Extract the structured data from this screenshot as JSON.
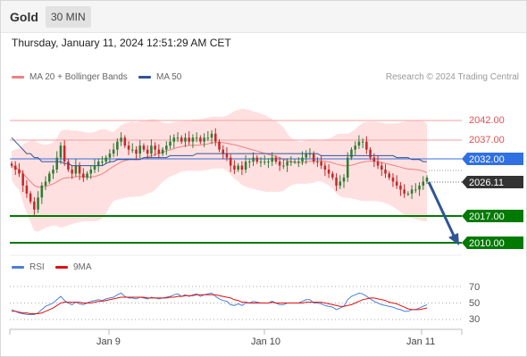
{
  "header": {
    "instrument": "Gold",
    "timeframe": "30 MIN"
  },
  "timestamp": "Thursday, January 11, 2024 12:51:29 AM CET",
  "legend": {
    "bollinger": {
      "label": "MA 20 + Bollinger Bands",
      "color": "#f08080"
    },
    "ma50": {
      "label": "MA 50",
      "color": "#2f5597"
    }
  },
  "credit": "Research © 2024 Trading Central",
  "levels": [
    {
      "value": "2042.00",
      "type": "resistance",
      "color": "#e05050"
    },
    {
      "value": "2037.00",
      "type": "resistance",
      "color": "#e05050"
    },
    {
      "value": "2032.00",
      "type": "pivot",
      "color": "#3070e0"
    },
    {
      "value": "2026.11",
      "type": "last",
      "color": "#333333"
    },
    {
      "value": "2017.00",
      "type": "support",
      "color": "#007a00"
    },
    {
      "value": "2010.00",
      "type": "support",
      "color": "#007a00"
    }
  ],
  "rsi": {
    "legend": [
      {
        "label": "RSI",
        "color": "#4a7fd8"
      },
      {
        "label": "9MA",
        "color": "#e01010"
      }
    ],
    "levels": [
      "70",
      "50",
      "30"
    ]
  },
  "x_axis": [
    "Jan 9",
    "Jan 10",
    "Jan 11"
  ],
  "colors": {
    "up": "#2e7d32",
    "down": "#c62828",
    "band": "#ffd8d8"
  },
  "chart_data": {
    "type": "candlestick",
    "price_range": [
      2007,
      2047
    ],
    "last_price": 2026.11,
    "forecast_target": 2010.0,
    "series": [
      {
        "name": "Price",
        "close": [
          2029,
          2028,
          2027,
          2024,
          2022,
          2020,
          2018,
          2021,
          2024,
          2025,
          2027,
          2028,
          2031,
          2034,
          2030,
          2028,
          2027,
          2029,
          2027,
          2026,
          2027,
          2028,
          2029,
          2030,
          2030,
          2031,
          2032,
          2033,
          2035,
          2036,
          2034,
          2033,
          2033,
          2032,
          2034,
          2033,
          2032,
          2034,
          2033,
          2032,
          2033,
          2034,
          2035,
          2036,
          2036,
          2035,
          2036,
          2035,
          2036,
          2036,
          2035,
          2036,
          2036,
          2037,
          2035,
          2033,
          2032,
          2031,
          2029,
          2028,
          2029,
          2028,
          2030,
          2030,
          2031,
          2030,
          2030,
          2030,
          2030,
          2031,
          2030,
          2029,
          2029,
          2030,
          2030,
          2030,
          2030,
          2031,
          2032,
          2032,
          2030,
          2030,
          2029,
          2028,
          2027,
          2026,
          2024,
          2025,
          2026,
          2031,
          2033,
          2034,
          2035,
          2035,
          2033,
          2031,
          2030,
          2029,
          2028,
          2027,
          2026,
          2025,
          2024,
          2023,
          2022,
          2022,
          2023,
          2023,
          2024,
          2025,
          2026
        ]
      },
      {
        "name": "MA 50",
        "values": [
          2036,
          2035,
          2034,
          2033,
          2032,
          2032,
          2031,
          2031,
          2030,
          2030,
          2030,
          2030,
          2030,
          2030,
          2029.5,
          2029.5,
          2029,
          2029,
          2029,
          2029,
          2029,
          2029,
          2029,
          2029,
          2029,
          2029.5,
          2030,
          2030,
          2030.5,
          2030.5,
          2030.5,
          2030.5,
          2030.5,
          2030.5,
          2030.5,
          2031,
          2031,
          2031,
          2031,
          2031,
          2031,
          2031,
          2031.5,
          2031.5,
          2031.5,
          2031.5,
          2031.5,
          2031.5,
          2031.5,
          2032,
          2032,
          2032,
          2032,
          2032,
          2032,
          2032,
          2032,
          2032,
          2032,
          2032,
          2032,
          2032,
          2032,
          2032,
          2032,
          2032,
          2032,
          2032,
          2032,
          2032,
          2032,
          2032,
          2032,
          2032,
          2032,
          2032,
          2032,
          2032,
          2032,
          2032,
          2032,
          2032,
          2031.5,
          2031.5,
          2031.5,
          2031.5,
          2031.5,
          2031.5,
          2031.5,
          2031.5,
          2031.5,
          2031.5,
          2031.5,
          2031.5,
          2031.5,
          2031.5,
          2031.5,
          2031.5,
          2031.5,
          2031.5,
          2031.5,
          2031.5,
          2031,
          2031,
          2031,
          2031,
          2030.5,
          2030.5,
          2030.5,
          2030,
          2030
        ]
      },
      {
        "name": "RSI",
        "values": [
          42,
          40,
          38,
          37,
          36,
          36,
          36,
          38,
          42,
          46,
          48,
          50,
          54,
          58,
          53,
          50,
          48,
          51,
          49,
          48,
          50,
          52,
          53,
          54,
          53,
          55,
          56,
          57,
          60,
          62,
          58,
          56,
          56,
          55,
          57,
          56,
          55,
          57,
          56,
          55,
          56,
          57,
          58,
          60,
          61,
          58,
          60,
          58,
          60,
          61,
          58,
          60,
          61,
          62,
          58,
          55,
          53,
          52,
          48,
          47,
          49,
          47,
          50,
          50,
          52,
          51,
          50,
          50,
          50,
          52,
          50,
          48,
          48,
          50,
          50,
          50,
          50,
          52,
          54,
          54,
          50,
          50,
          49,
          47,
          46,
          45,
          42,
          44,
          46,
          54,
          58,
          60,
          62,
          61,
          58,
          55,
          52,
          50,
          48,
          47,
          46,
          45,
          43,
          42,
          40,
          40,
          42,
          42,
          44,
          46,
          48
        ]
      },
      {
        "name": "9MA",
        "values": [
          40,
          40,
          39,
          38,
          38,
          37,
          37,
          37,
          38,
          40,
          42,
          44,
          47,
          50,
          51,
          51,
          51,
          51,
          51,
          50,
          50,
          50,
          51,
          52,
          52,
          53,
          54,
          55,
          56,
          57,
          57,
          57,
          57,
          57,
          57,
          57,
          56,
          56,
          56,
          56,
          56,
          56,
          57,
          57,
          58,
          58,
          59,
          59,
          59,
          60,
          60,
          60,
          60,
          60,
          60,
          59,
          58,
          57,
          56,
          54,
          53,
          51,
          51,
          50,
          50,
          50,
          50,
          50,
          50,
          51,
          50,
          50,
          50,
          50,
          50,
          50,
          50,
          50,
          51,
          51,
          51,
          51,
          51,
          50,
          49,
          48,
          47,
          46,
          46,
          47,
          48,
          50,
          52,
          54,
          55,
          56,
          56,
          55,
          54,
          53,
          51,
          50,
          49,
          47,
          45,
          43,
          42,
          42,
          42,
          43,
          44
        ]
      }
    ]
  }
}
